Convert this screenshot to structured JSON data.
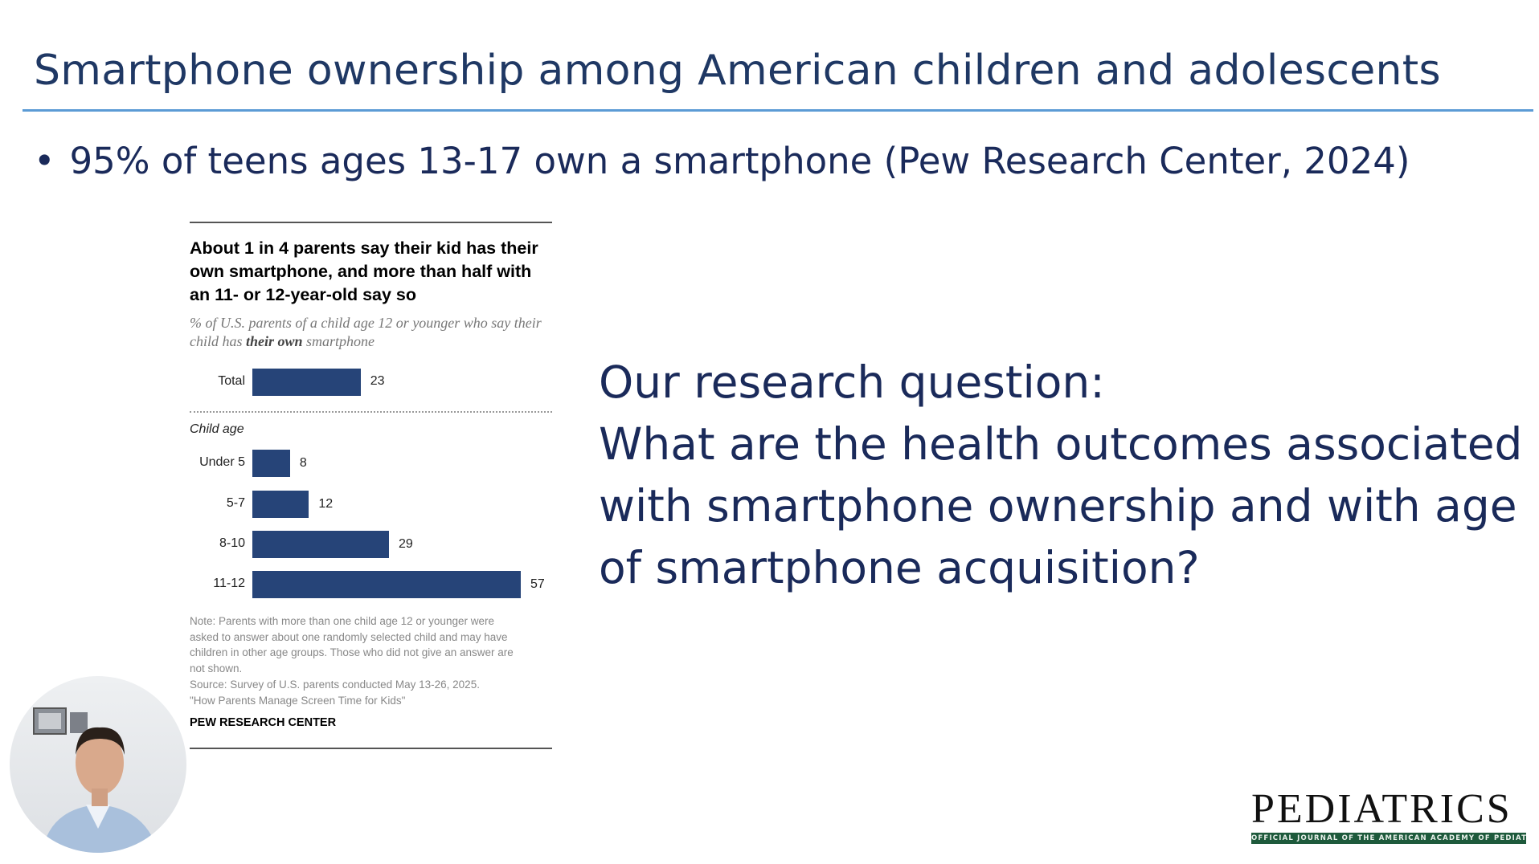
{
  "slide": {
    "title": "Smartphone ownership among American children and adolescents",
    "bullet": "95% of teens ages 13-17 own a smartphone (Pew Research Center, 2024)",
    "question_lines": [
      "Our research question:",
      "What are the health outcomes associated",
      "with smartphone ownership and with age",
      "of smartphone acquisition?"
    ],
    "accent_color": "#5b9bd5",
    "text_color": "#1f3864"
  },
  "chart_data": {
    "type": "bar",
    "orientation": "horizontal",
    "title": "About 1 in 4 parents say their kid has their own smartphone, and more than half with an 11- or 12-year-old say so",
    "subtitle_pre": "% of U.S. parents of a child age 12 or younger who say their child has ",
    "subtitle_bold": "their own",
    "subtitle_post": " smartphone",
    "group_label": "Child age",
    "total": {
      "category": "Total",
      "value": 23
    },
    "categories": [
      "Under 5",
      "5-7",
      "8-10",
      "11-12"
    ],
    "values": [
      8,
      12,
      29,
      57
    ],
    "bar_color": "#264478",
    "note_lines": [
      "Note: Parents with more than one child age 12 or younger were",
      "asked to answer about one randomly selected child and may have",
      "children in other age groups. Those who did not give an answer are",
      "not shown.",
      "Source: Survey of U.S. parents conducted May 13-26, 2025.",
      "\"How Parents Manage Screen Time for Kids\""
    ],
    "source_org": "PEW RESEARCH CENTER"
  },
  "logo": {
    "word": "PEDIATRICS",
    "tagline": "OFFICIAL JOURNAL OF THE AMERICAN ACADEMY OF PEDIATRICS",
    "band_color": "#1e5a3c"
  }
}
